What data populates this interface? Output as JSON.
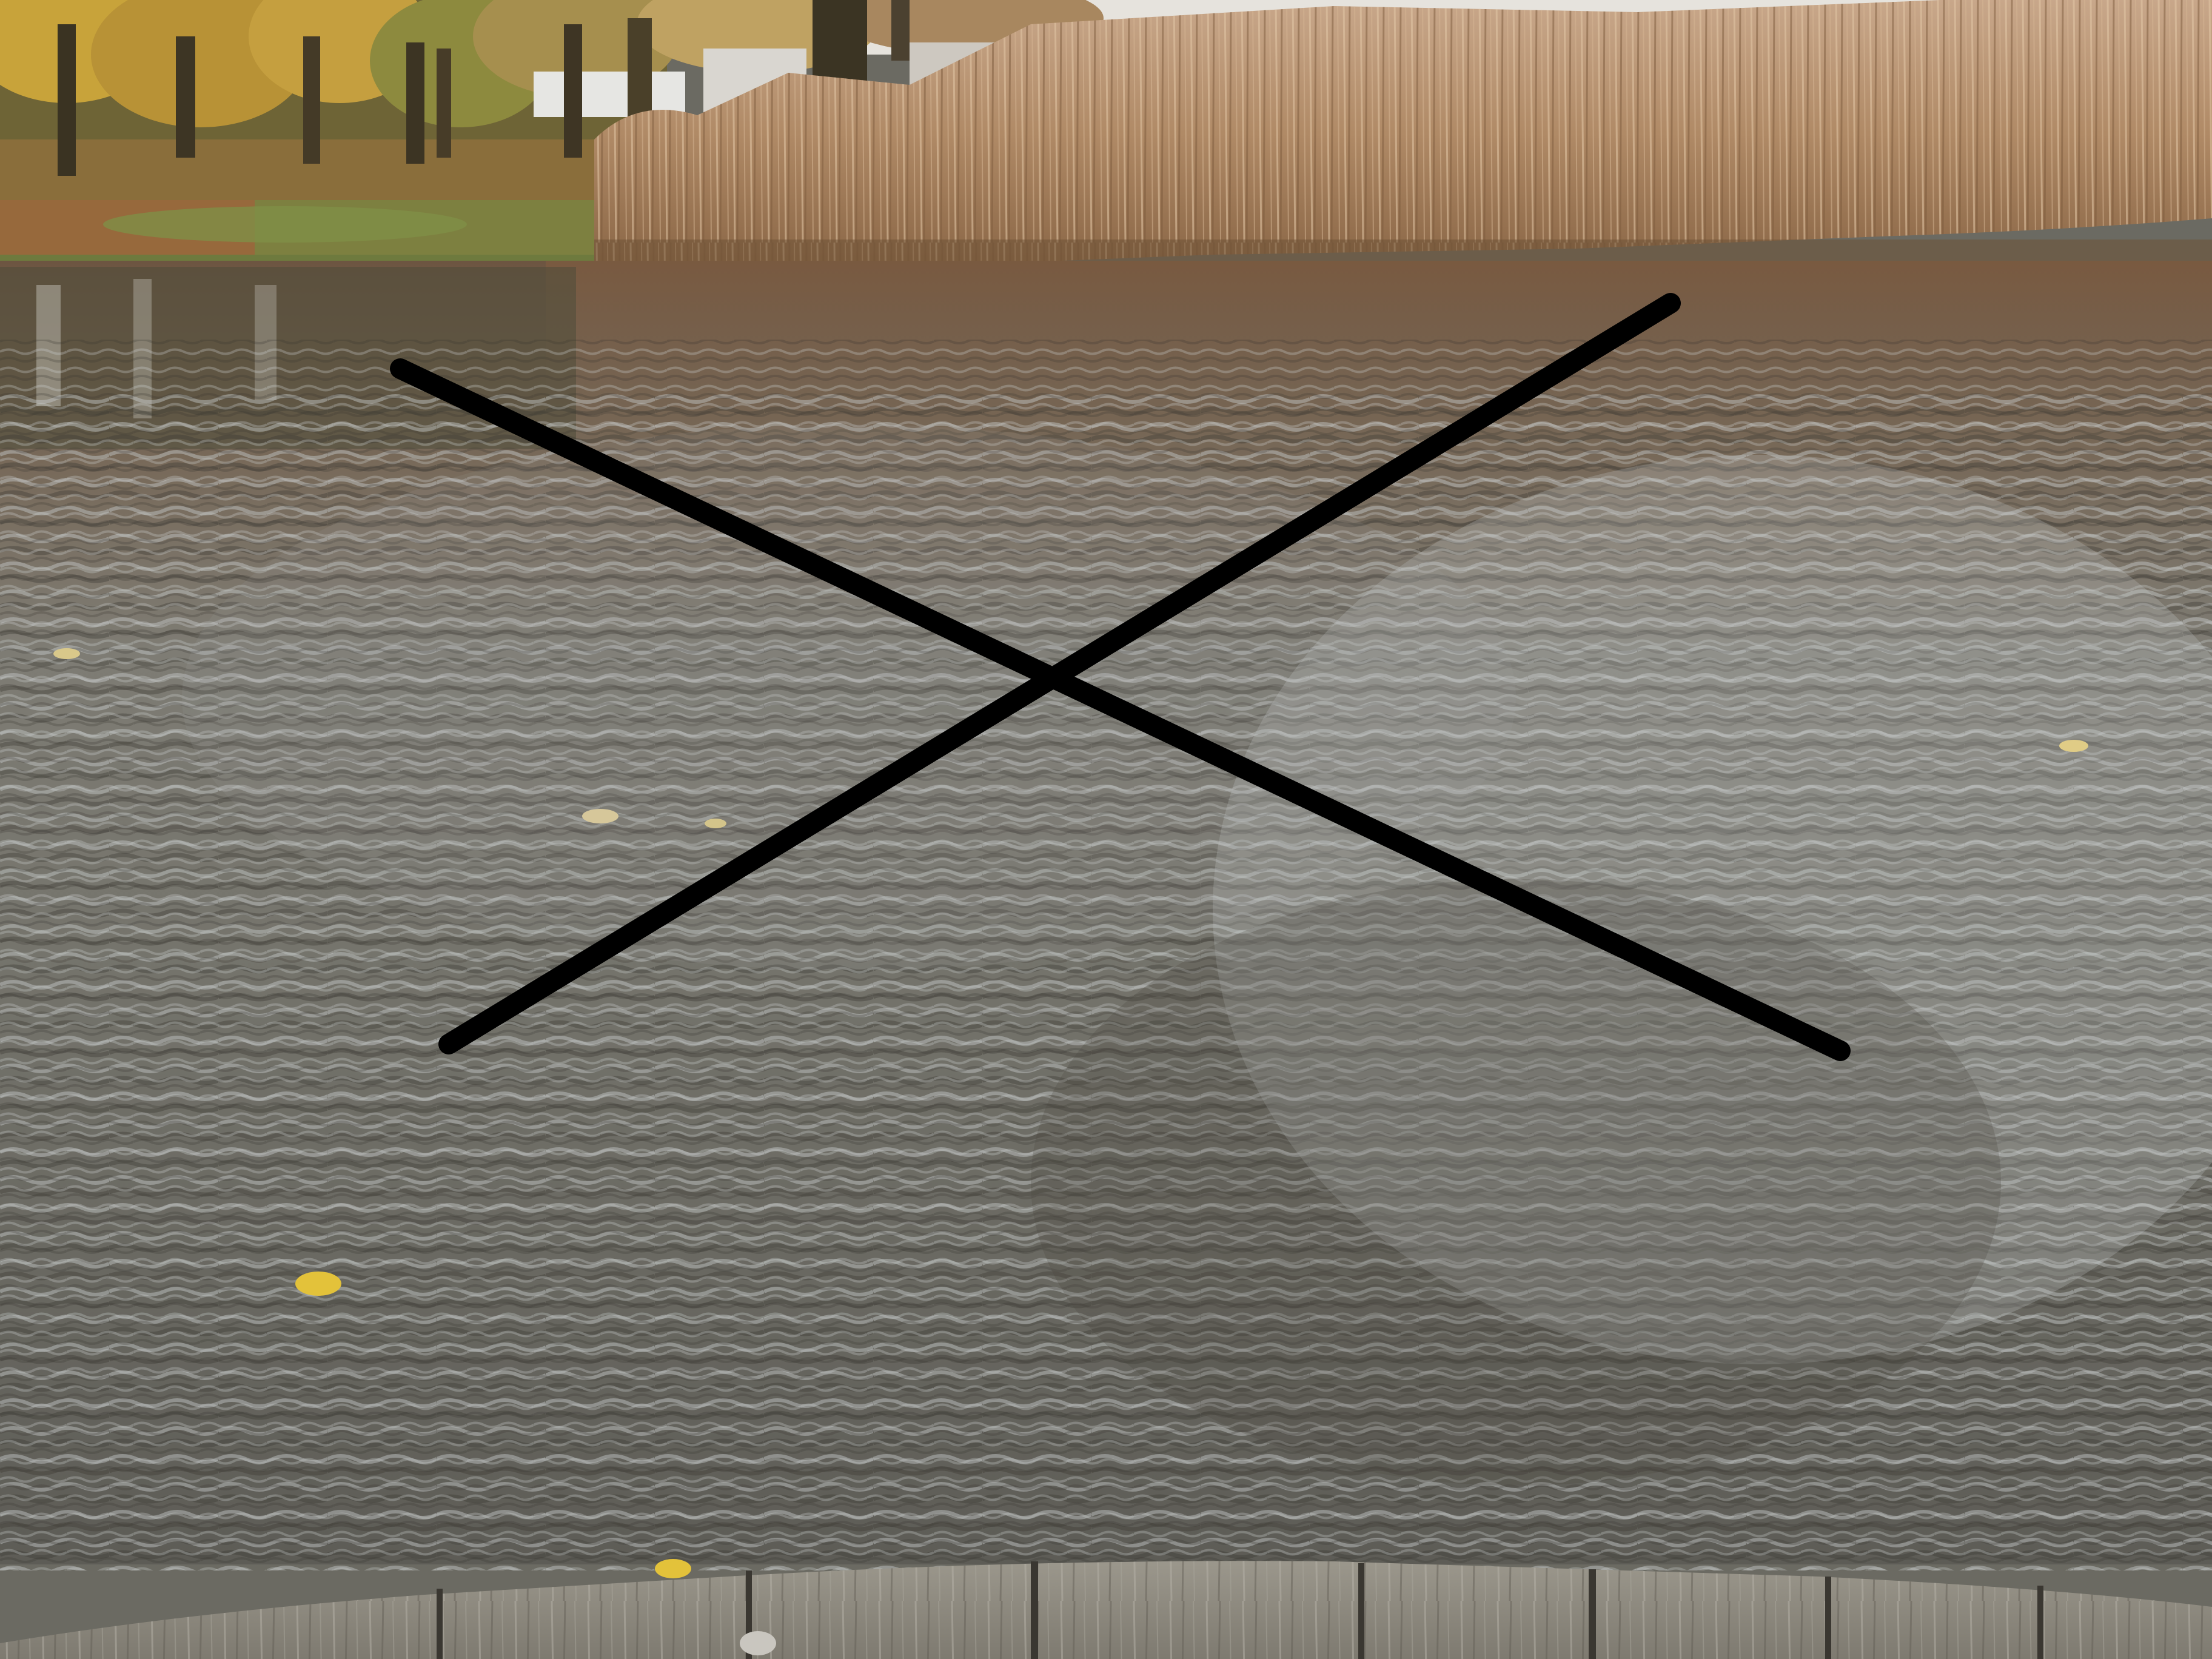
{
  "scene": {
    "subject": "pond-water-with-reeds-and-wooden-dock",
    "overlay_mark": "x-cross",
    "colors": {
      "sky": "#e9e7e2",
      "trees_dark": "#3b3423",
      "foliage_yellow": "#c9a43a",
      "foliage_green": "#6e7d3a",
      "grass": "#7d6f38",
      "reeds_light": "#c4a07a",
      "reeds_mid": "#a77f5c",
      "reeds_dark": "#7a5a3c",
      "water_reflection": "#7a5d45",
      "water_surface": "#6f6e66",
      "water_highlight": "#b9bcbd",
      "water_shadow": "#3e3c35",
      "dock_wood": "#8e8a80",
      "dock_gap": "#3a3731",
      "cross_stroke": "#000000",
      "leaf": "#e3c23a"
    }
  }
}
